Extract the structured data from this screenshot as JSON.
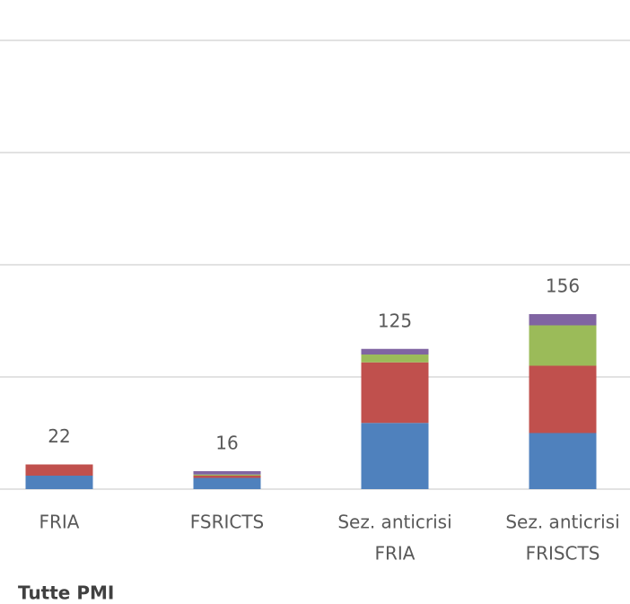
{
  "chart_data": {
    "type": "stacked_bar",
    "title": "Tutte PMI",
    "categories": [
      [
        "FRIA"
      ],
      [
        "FSRICTS"
      ],
      [
        "Sez. anticrisi",
        "FRIA"
      ],
      [
        "Sez. anticrisi",
        "FRISCTS"
      ]
    ],
    "series": [
      {
        "color": "#4f81bd",
        "values": [
          12,
          10,
          59,
          50
        ]
      },
      {
        "color": "#c0504d",
        "values": [
          10,
          2,
          54,
          60
        ]
      },
      {
        "color": "#9bbb59",
        "values": [
          0,
          1,
          7,
          36
        ]
      },
      {
        "color": "#8064a2",
        "values": [
          0,
          3,
          5,
          10
        ]
      }
    ],
    "totals": [
      22,
      16,
      125,
      156
    ],
    "ylim": [
      0,
      400
    ],
    "yticks": [
      0,
      100,
      200,
      300,
      400
    ],
    "grid": true
  }
}
